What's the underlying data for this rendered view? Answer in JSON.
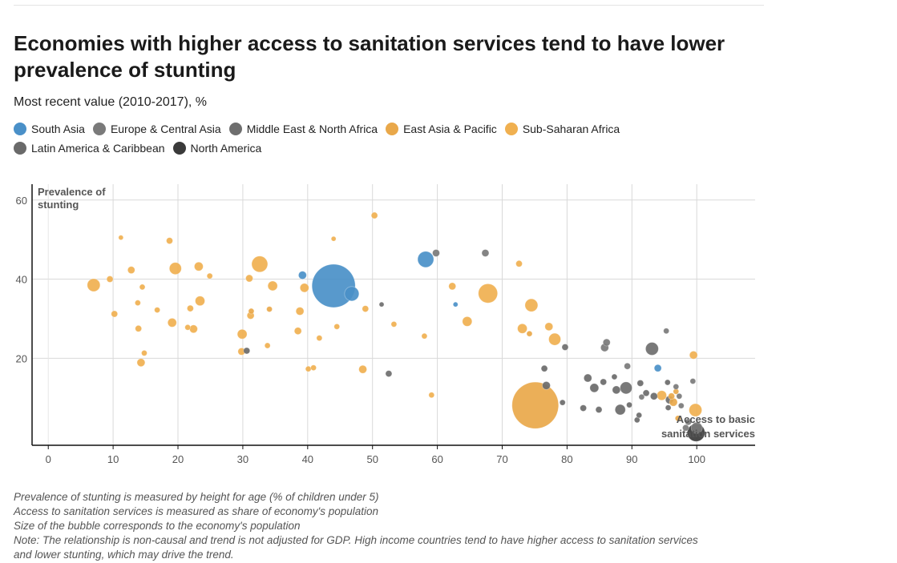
{
  "title": "Economies with higher access to sanitation services tend to have lower prevalence of stunting",
  "subtitle": "Most recent value (2010-2017), %",
  "legend": {
    "row1": [
      {
        "name": "South Asia",
        "color": "#4a90c8"
      },
      {
        "name": "Europe & Central Asia",
        "color": "#7a7a7a"
      },
      {
        "name": "Middle East & North Africa",
        "color": "#6e6e6e"
      },
      {
        "name": "East Asia & Pacific",
        "color": "#e9a84a"
      },
      {
        "name": "Sub-Saharan Africa",
        "color": "#f0b050"
      }
    ],
    "row2": [
      {
        "name": "Latin America & Caribbean",
        "color": "#6a6a6a"
      },
      {
        "name": "North America",
        "color": "#3a3a3a"
      }
    ]
  },
  "notes": [
    "Prevalence of stunting is measured by height for age (% of children under 5)",
    "Access to sanitation services is measured as share of economy's population",
    "Size of the bubble corresponds to the economy's population",
    "Note: The relationship is non-causal and trend is not adjusted for GDP. High income countries tend to have higher access to sanitation services",
    "and lower stunting, which may drive the trend."
  ],
  "chart_data": {
    "type": "scatter",
    "ylabel_lines": [
      "Prevalence of",
      "stunting"
    ],
    "xlabel_lines": [
      "Access to basic",
      "sanitation services"
    ],
    "xlim": [
      -2.5,
      109
    ],
    "ylim": [
      -2,
      64
    ],
    "xticks": [
      0,
      10,
      20,
      30,
      40,
      50,
      60,
      70,
      80,
      90,
      100
    ],
    "yticks": [
      20,
      40,
      60
    ],
    "grid": true,
    "colors": {
      "South Asia": "#4a90c8",
      "Europe & Central Asia": "#7a7a7a",
      "Middle East & North Africa": "#6e6e6e",
      "East Asia & Pacific": "#e9a84a",
      "Sub-Saharan Africa": "#f0b050",
      "Latin America & Caribbean": "#6a6a6a",
      "North America": "#3a3a3a"
    },
    "points": [
      {
        "x": 7,
        "y": 38.5,
        "r": 8,
        "region": "Sub-Saharan Africa"
      },
      {
        "x": 9.5,
        "y": 40,
        "r": 4,
        "region": "Sub-Saharan Africa"
      },
      {
        "x": 10.2,
        "y": 31.2,
        "r": 4,
        "region": "Sub-Saharan Africa"
      },
      {
        "x": 11.2,
        "y": 50.5,
        "r": 3,
        "region": "Sub-Saharan Africa"
      },
      {
        "x": 12.8,
        "y": 42.3,
        "r": 4.5,
        "region": "Sub-Saharan Africa"
      },
      {
        "x": 13.8,
        "y": 34,
        "r": 3.5,
        "region": "Sub-Saharan Africa"
      },
      {
        "x": 13.9,
        "y": 27.5,
        "r": 4,
        "region": "Sub-Saharan Africa"
      },
      {
        "x": 14.5,
        "y": 38,
        "r": 3.5,
        "region": "Sub-Saharan Africa"
      },
      {
        "x": 14.3,
        "y": 18.9,
        "r": 5,
        "region": "Sub-Saharan Africa"
      },
      {
        "x": 14.8,
        "y": 21.3,
        "r": 3.5,
        "region": "Sub-Saharan Africa"
      },
      {
        "x": 16.8,
        "y": 32.2,
        "r": 3.5,
        "region": "Sub-Saharan Africa"
      },
      {
        "x": 18.7,
        "y": 49.7,
        "r": 4,
        "region": "Sub-Saharan Africa"
      },
      {
        "x": 19.1,
        "y": 29,
        "r": 5.5,
        "region": "Sub-Saharan Africa"
      },
      {
        "x": 19.6,
        "y": 42.7,
        "r": 7.5,
        "region": "Sub-Saharan Africa"
      },
      {
        "x": 21.5,
        "y": 27.8,
        "r": 3.5,
        "region": "Sub-Saharan Africa"
      },
      {
        "x": 21.9,
        "y": 32.6,
        "r": 4,
        "region": "Sub-Saharan Africa"
      },
      {
        "x": 22.4,
        "y": 27.4,
        "r": 5,
        "region": "Sub-Saharan Africa"
      },
      {
        "x": 23.2,
        "y": 43.2,
        "r": 5.5,
        "region": "Sub-Saharan Africa"
      },
      {
        "x": 23.4,
        "y": 34.5,
        "r": 6,
        "region": "Sub-Saharan Africa"
      },
      {
        "x": 24.9,
        "y": 40.8,
        "r": 3.5,
        "region": "Sub-Saharan Africa"
      },
      {
        "x": 29.9,
        "y": 26.1,
        "r": 6,
        "region": "Sub-Saharan Africa"
      },
      {
        "x": 29.8,
        "y": 21.7,
        "r": 4.5,
        "region": "Sub-Saharan Africa"
      },
      {
        "x": 30.6,
        "y": 21.9,
        "r": 4,
        "region": "Latin America & Caribbean"
      },
      {
        "x": 31,
        "y": 40.2,
        "r": 4.5,
        "region": "Sub-Saharan Africa"
      },
      {
        "x": 31.2,
        "y": 30.8,
        "r": 4.5,
        "region": "Sub-Saharan Africa"
      },
      {
        "x": 31.3,
        "y": 31.9,
        "r": 3.5,
        "region": "East Asia & Pacific"
      },
      {
        "x": 32.6,
        "y": 43.8,
        "r": 10,
        "region": "Sub-Saharan Africa"
      },
      {
        "x": 33.8,
        "y": 23.2,
        "r": 3.5,
        "region": "Sub-Saharan Africa"
      },
      {
        "x": 34.1,
        "y": 32.4,
        "r": 3.5,
        "region": "East Asia & Pacific"
      },
      {
        "x": 34.6,
        "y": 38.3,
        "r": 6,
        "region": "Sub-Saharan Africa"
      },
      {
        "x": 38.5,
        "y": 26.9,
        "r": 4.5,
        "region": "Sub-Saharan Africa"
      },
      {
        "x": 38.8,
        "y": 31.9,
        "r": 5,
        "region": "Sub-Saharan Africa"
      },
      {
        "x": 39.2,
        "y": 41,
        "r": 5,
        "region": "South Asia"
      },
      {
        "x": 39.5,
        "y": 37.8,
        "r": 5.5,
        "region": "Sub-Saharan Africa"
      },
      {
        "x": 40.1,
        "y": 17.3,
        "r": 3.5,
        "region": "Sub-Saharan Africa"
      },
      {
        "x": 40.9,
        "y": 17.6,
        "r": 3.5,
        "region": "Sub-Saharan Africa"
      },
      {
        "x": 41.8,
        "y": 25.1,
        "r": 3.5,
        "region": "Sub-Saharan Africa"
      },
      {
        "x": 44,
        "y": 38.3,
        "r": 27,
        "region": "South Asia"
      },
      {
        "x": 44,
        "y": 50.2,
        "r": 3,
        "region": "Sub-Saharan Africa"
      },
      {
        "x": 44.5,
        "y": 28,
        "r": 3.5,
        "region": "Sub-Saharan Africa"
      },
      {
        "x": 46.8,
        "y": 36.3,
        "r": 9,
        "region": "South Asia"
      },
      {
        "x": 48.5,
        "y": 17.2,
        "r": 5,
        "region": "Sub-Saharan Africa"
      },
      {
        "x": 48.9,
        "y": 32.5,
        "r": 4,
        "region": "Sub-Saharan Africa"
      },
      {
        "x": 50.3,
        "y": 56.1,
        "r": 4,
        "region": "Sub-Saharan Africa"
      },
      {
        "x": 51.4,
        "y": 33.6,
        "r": 3,
        "region": "Middle East & North Africa"
      },
      {
        "x": 52.5,
        "y": 16.1,
        "r": 4,
        "region": "Middle East & North Africa"
      },
      {
        "x": 53.3,
        "y": 28.6,
        "r": 3.5,
        "region": "Sub-Saharan Africa"
      },
      {
        "x": 58,
        "y": 25.6,
        "r": 3.5,
        "region": "Sub-Saharan Africa"
      },
      {
        "x": 58.2,
        "y": 45,
        "r": 10,
        "region": "South Asia"
      },
      {
        "x": 59.1,
        "y": 10.7,
        "r": 3.5,
        "region": "Sub-Saharan Africa"
      },
      {
        "x": 59.8,
        "y": 46.6,
        "r": 4.5,
        "region": "Europe & Central Asia"
      },
      {
        "x": 62.3,
        "y": 38.2,
        "r": 4.5,
        "region": "Sub-Saharan Africa"
      },
      {
        "x": 62.8,
        "y": 33.6,
        "r": 3,
        "region": "South Asia"
      },
      {
        "x": 64.6,
        "y": 29.3,
        "r": 6,
        "region": "Sub-Saharan Africa"
      },
      {
        "x": 67.4,
        "y": 46.6,
        "r": 4.5,
        "region": "Europe & Central Asia"
      },
      {
        "x": 67.8,
        "y": 36.4,
        "r": 12,
        "region": "Sub-Saharan Africa"
      },
      {
        "x": 72.6,
        "y": 43.9,
        "r": 4,
        "region": "Sub-Saharan Africa"
      },
      {
        "x": 73.1,
        "y": 27.5,
        "r": 6,
        "region": "Sub-Saharan Africa"
      },
      {
        "x": 74.2,
        "y": 26.2,
        "r": 3.5,
        "region": "East Asia & Pacific"
      },
      {
        "x": 74.5,
        "y": 33.4,
        "r": 8,
        "region": "Sub-Saharan Africa"
      },
      {
        "x": 75.1,
        "y": 8.1,
        "r": 29,
        "region": "East Asia & Pacific"
      },
      {
        "x": 76.5,
        "y": 17.4,
        "r": 4,
        "region": "Latin America & Caribbean"
      },
      {
        "x": 76.8,
        "y": 13.1,
        "r": 5,
        "region": "Latin America & Caribbean"
      },
      {
        "x": 77.2,
        "y": 28,
        "r": 5,
        "region": "Sub-Saharan Africa"
      },
      {
        "x": 78.1,
        "y": 24.8,
        "r": 7.5,
        "region": "Sub-Saharan Africa"
      },
      {
        "x": 79.3,
        "y": 8.8,
        "r": 3.5,
        "region": "Latin America & Caribbean"
      },
      {
        "x": 79.7,
        "y": 22.8,
        "r": 4,
        "region": "Middle East & North Africa"
      },
      {
        "x": 82.5,
        "y": 7.4,
        "r": 4,
        "region": "Latin America & Caribbean"
      },
      {
        "x": 83.2,
        "y": 15,
        "r": 5,
        "region": "Latin America & Caribbean"
      },
      {
        "x": 84.2,
        "y": 12.5,
        "r": 5.5,
        "region": "Latin America & Caribbean"
      },
      {
        "x": 84.9,
        "y": 7,
        "r": 4,
        "region": "Latin America & Caribbean"
      },
      {
        "x": 85.6,
        "y": 14,
        "r": 4,
        "region": "Latin America & Caribbean"
      },
      {
        "x": 85.8,
        "y": 22.7,
        "r": 5,
        "region": "Europe & Central Asia"
      },
      {
        "x": 86.1,
        "y": 24,
        "r": 4.5,
        "region": "Europe & Central Asia"
      },
      {
        "x": 87.3,
        "y": 15.3,
        "r": 3.5,
        "region": "Latin America & Caribbean"
      },
      {
        "x": 87.6,
        "y": 12,
        "r": 5,
        "region": "Latin America & Caribbean"
      },
      {
        "x": 88.2,
        "y": 7,
        "r": 6.5,
        "region": "Latin America & Caribbean"
      },
      {
        "x": 89.1,
        "y": 12.5,
        "r": 7.5,
        "region": "Middle East & North Africa"
      },
      {
        "x": 89.3,
        "y": 18,
        "r": 4,
        "region": "Europe & Central Asia"
      },
      {
        "x": 89.6,
        "y": 8.2,
        "r": 3.5,
        "region": "Latin America & Caribbean"
      },
      {
        "x": 90.8,
        "y": 4.4,
        "r": 3.5,
        "region": "Latin America & Caribbean"
      },
      {
        "x": 91.1,
        "y": 5.6,
        "r": 3.5,
        "region": "Latin America & Caribbean"
      },
      {
        "x": 91.3,
        "y": 13.7,
        "r": 4,
        "region": "Latin America & Caribbean"
      },
      {
        "x": 91.5,
        "y": 10.2,
        "r": 3.5,
        "region": "Europe & Central Asia"
      },
      {
        "x": 92.2,
        "y": 11.2,
        "r": 4,
        "region": "Latin America & Caribbean"
      },
      {
        "x": 93.1,
        "y": 22.4,
        "r": 8,
        "region": "Middle East & North Africa"
      },
      {
        "x": 93.4,
        "y": 10.4,
        "r": 4.5,
        "region": "Latin America & Caribbean"
      },
      {
        "x": 94,
        "y": 17.5,
        "r": 4.5,
        "region": "South Asia"
      },
      {
        "x": 94.6,
        "y": 10.6,
        "r": 6,
        "region": "Sub-Saharan Africa"
      },
      {
        "x": 95.3,
        "y": 26.9,
        "r": 3.5,
        "region": "Europe & Central Asia"
      },
      {
        "x": 95.5,
        "y": 13.9,
        "r": 3.5,
        "region": "Latin America & Caribbean"
      },
      {
        "x": 95.6,
        "y": 7.5,
        "r": 3.5,
        "region": "Latin America & Caribbean"
      },
      {
        "x": 95.8,
        "y": 9.5,
        "r": 5,
        "region": "Middle East & North Africa"
      },
      {
        "x": 96.1,
        "y": 10.4,
        "r": 4,
        "region": "East Asia & Pacific"
      },
      {
        "x": 96.4,
        "y": 8.9,
        "r": 5,
        "region": "East Asia & Pacific"
      },
      {
        "x": 96.8,
        "y": 11.6,
        "r": 3.5,
        "region": "East Asia & Pacific"
      },
      {
        "x": 96.8,
        "y": 12.8,
        "r": 3.5,
        "region": "Europe & Central Asia"
      },
      {
        "x": 97.1,
        "y": 4.8,
        "r": 3.5,
        "region": "East Asia & Pacific"
      },
      {
        "x": 97.3,
        "y": 10.4,
        "r": 3.5,
        "region": "Europe & Central Asia"
      },
      {
        "x": 97.6,
        "y": 8,
        "r": 3.5,
        "region": "Europe & Central Asia"
      },
      {
        "x": 98.3,
        "y": 2.4,
        "r": 4,
        "region": "Europe & Central Asia"
      },
      {
        "x": 98.7,
        "y": 3.9,
        "r": 4,
        "region": "Europe & Central Asia"
      },
      {
        "x": 99.4,
        "y": 14.2,
        "r": 3.5,
        "region": "Europe & Central Asia"
      },
      {
        "x": 99.5,
        "y": 20.8,
        "r": 5,
        "region": "Sub-Saharan Africa"
      },
      {
        "x": 99.8,
        "y": 6.9,
        "r": 8,
        "region": "Sub-Saharan Africa"
      },
      {
        "x": 99.9,
        "y": 1.2,
        "r": 11,
        "region": "North America"
      },
      {
        "x": 100,
        "y": 2.4,
        "r": 7,
        "region": "Europe & Central Asia"
      }
    ]
  }
}
